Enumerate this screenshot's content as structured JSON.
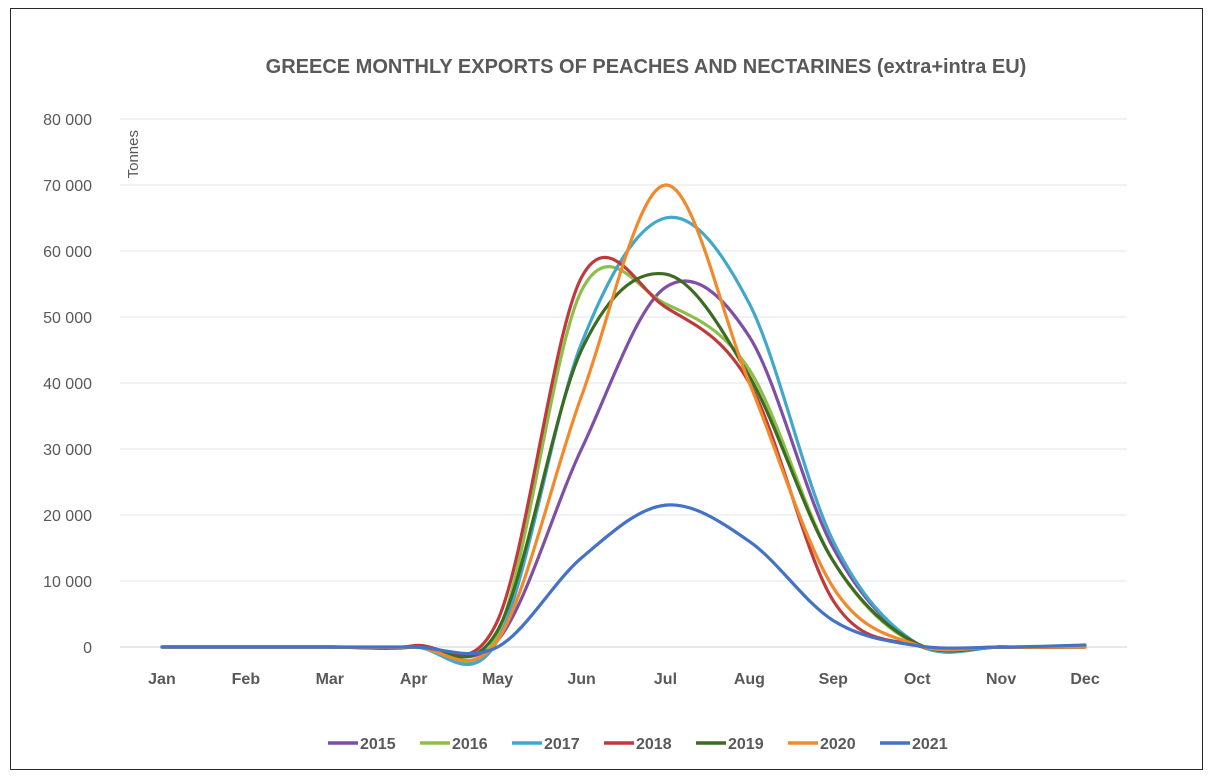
{
  "chart_data": {
    "type": "line",
    "title": "GREECE MONTHLY EXPORTS OF PEACHES AND NECTARINES (extra+intra EU)",
    "ylabel": "Tonnes",
    "xlabel": "",
    "ylim": [
      0,
      80000
    ],
    "yticks": [
      0,
      10000,
      20000,
      30000,
      40000,
      50000,
      60000,
      70000,
      80000
    ],
    "ytick_labels": [
      "0",
      "10 000",
      "20 000",
      "30 000",
      "40 000",
      "50 000",
      "60 000",
      "70 000",
      "80 000"
    ],
    "categories": [
      "Jan",
      "Feb",
      "Mar",
      "Apr",
      "May",
      "Jun",
      "Jul",
      "Aug",
      "Sep",
      "Oct",
      "Nov",
      "Dec"
    ],
    "grid": true,
    "legend_position": "bottom",
    "series": [
      {
        "name": "2015",
        "color": "#7f4fa6",
        "values": [
          0,
          0,
          0,
          0,
          1000,
          30000,
          54500,
          47000,
          15000,
          500,
          0,
          0
        ]
      },
      {
        "name": "2016",
        "color": "#8cbf4a",
        "values": [
          0,
          0,
          0,
          0,
          2000,
          54000,
          52000,
          42000,
          13000,
          300,
          0,
          0
        ]
      },
      {
        "name": "2017",
        "color": "#41a8c9",
        "values": [
          0,
          0,
          0,
          0,
          1000,
          46000,
          65000,
          52000,
          16000,
          500,
          0,
          0
        ]
      },
      {
        "name": "2018",
        "color": "#c0393b",
        "values": [
          0,
          0,
          0,
          200,
          4000,
          56000,
          51500,
          40000,
          7000,
          200,
          0,
          0
        ]
      },
      {
        "name": "2019",
        "color": "#3d6b21",
        "values": [
          0,
          0,
          0,
          0,
          2500,
          45000,
          56500,
          41000,
          13000,
          500,
          0,
          0
        ]
      },
      {
        "name": "2020",
        "color": "#f08a2c",
        "values": [
          0,
          0,
          0,
          0,
          1000,
          38000,
          70000,
          40000,
          9000,
          300,
          0,
          0
        ]
      },
      {
        "name": "2021",
        "color": "#4472c4",
        "values": [
          0,
          0,
          0,
          0,
          0,
          13500,
          21500,
          16000,
          4000,
          200,
          0,
          300
        ]
      }
    ]
  }
}
